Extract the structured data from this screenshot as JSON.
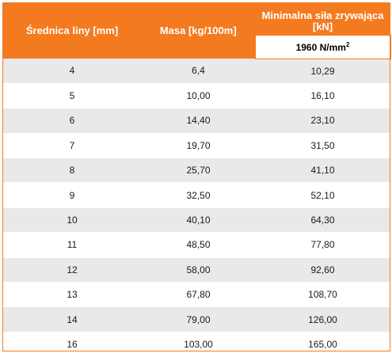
{
  "table": {
    "headers": {
      "diameter": "Średnica liny [mm]",
      "mass": "Masa [kg/100m]",
      "force": "Minimalna siła zrywająca [kN]",
      "force_sub": "1960 N/mm",
      "force_sub_sup": "2"
    },
    "rows": [
      [
        "4",
        "6,4",
        "10,29"
      ],
      [
        "5",
        "10,00",
        "16,10"
      ],
      [
        "6",
        "14,40",
        "23,10"
      ],
      [
        "7",
        "19,70",
        "31,50"
      ],
      [
        "8",
        "25,70",
        "41,10"
      ],
      [
        "9",
        "32,50",
        "52,10"
      ],
      [
        "10",
        "40,10",
        "64,30"
      ],
      [
        "11",
        "48,50",
        "77,80"
      ],
      [
        "12",
        "58,00",
        "92,60"
      ],
      [
        "13",
        "67,80",
        "108,70"
      ],
      [
        "14",
        "79,00",
        "126,00"
      ],
      [
        "16",
        "103,00",
        "165,00"
      ]
    ]
  },
  "colors": {
    "header": "#f47a20",
    "row_shaded": "#e9e9e9",
    "row_plain": "#ffffff"
  }
}
